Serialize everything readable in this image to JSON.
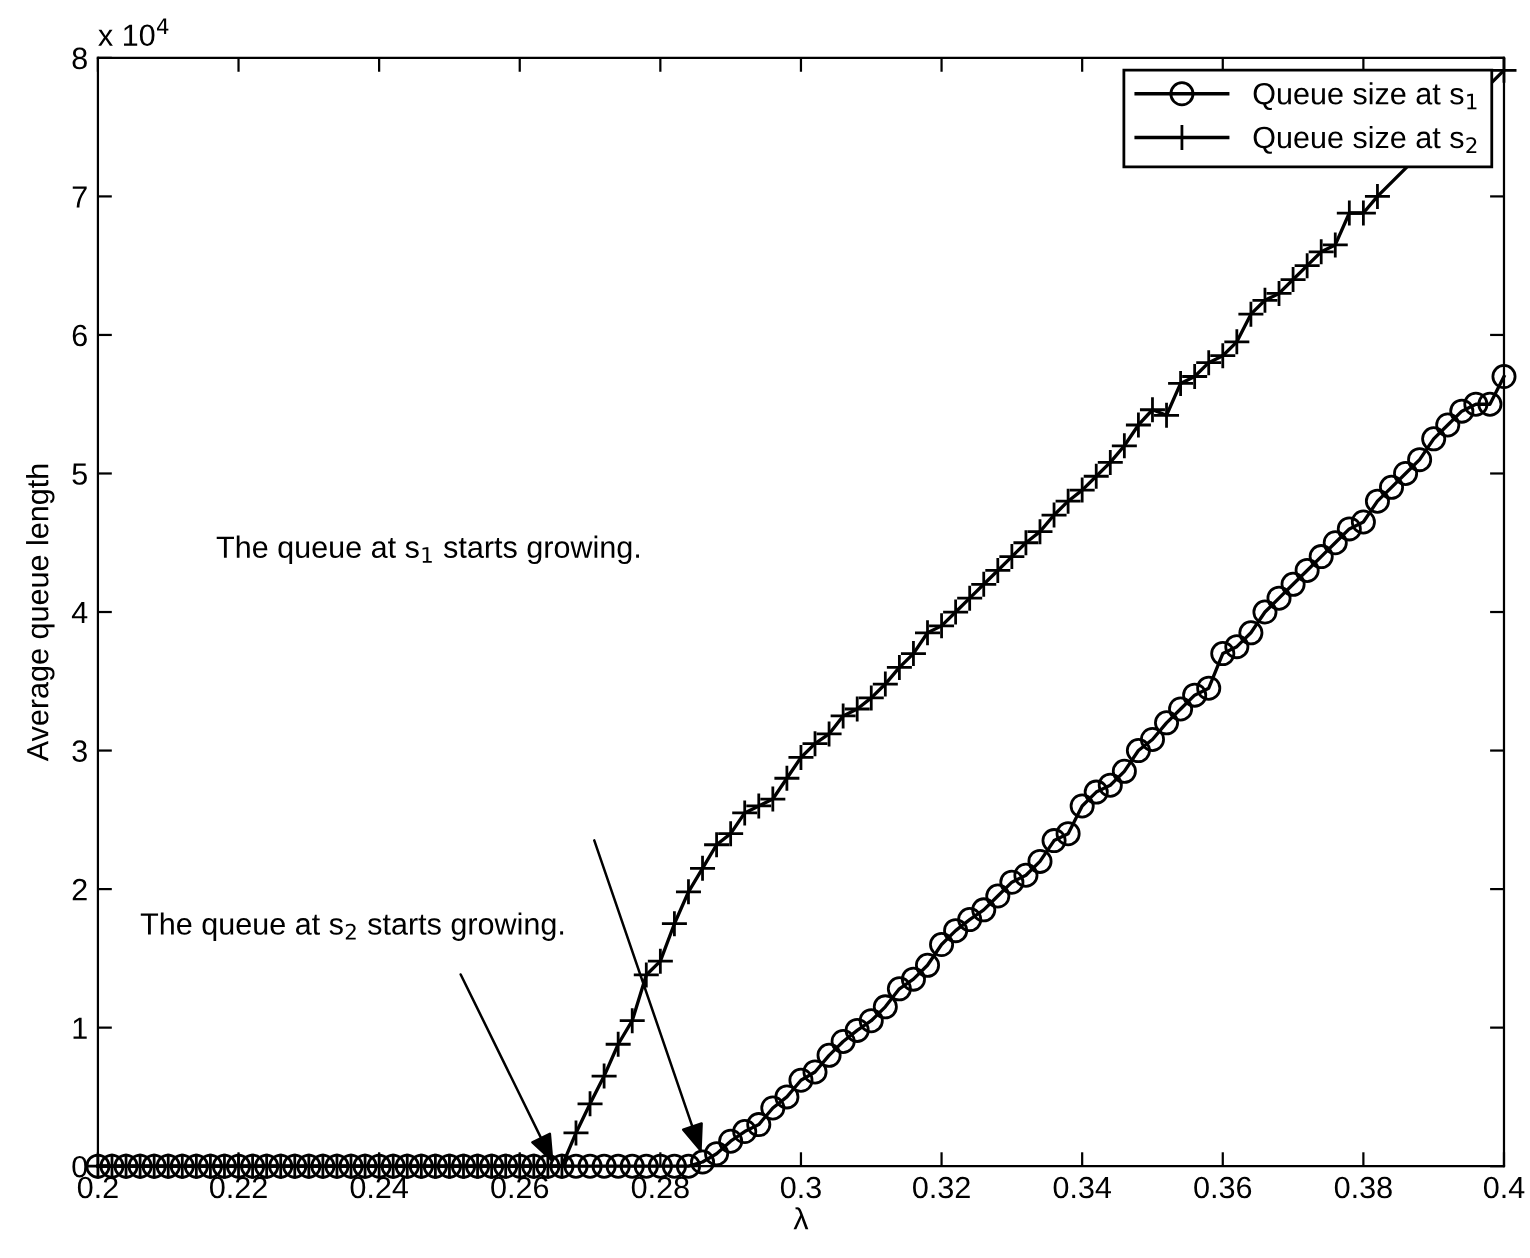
{
  "chart_data": {
    "type": "line",
    "xlabel": "λ",
    "ylabel": "Average queue length",
    "xlim": [
      0.2,
      0.4
    ],
    "xticks": [
      0.2,
      0.22,
      0.24,
      0.26,
      0.28,
      0.3,
      0.32,
      0.34,
      0.36,
      0.38,
      0.4
    ],
    "ylim": [
      0,
      8
    ],
    "yticks": [
      0,
      1,
      2,
      3,
      4,
      5,
      6,
      7,
      8
    ],
    "grid": false,
    "legend": "top right",
    "line_style": "solid",
    "annotations": [
      "x 10$^{4}$",
      "The queue at s$_{1}$ starts growing.",
      {
        "text": "The queue at s$_{2}$ starts growing.",
        "x": 0.265,
        "y": 0
      }
    ],
    "series": [
      {
        "name": "Queue size at s$_{1}$",
        "color": "#000000",
        "marker": "circle",
        "x": [
          0.2,
          0.202,
          0.204,
          0.206,
          0.208,
          0.21,
          0.212,
          0.214,
          0.216,
          0.218,
          0.22,
          0.222,
          0.224,
          0.226,
          0.228,
          0.23,
          0.232,
          0.234,
          0.236,
          0.238,
          0.24,
          0.242,
          0.244,
          0.246,
          0.248,
          0.25,
          0.252,
          0.254,
          0.256,
          0.258,
          0.26,
          0.262,
          0.264,
          0.266,
          0.268,
          0.27,
          0.272,
          0.274,
          0.276,
          0.278,
          0.28,
          0.282,
          0.284,
          0.286,
          0.288,
          0.29,
          0.292,
          0.294,
          0.296,
          0.298,
          0.3,
          0.302,
          0.304,
          0.306,
          0.308,
          0.31,
          0.312,
          0.314,
          0.316,
          0.318,
          0.32,
          0.322,
          0.324,
          0.326,
          0.328,
          0.33,
          0.332,
          0.334,
          0.336,
          0.338,
          0.34,
          0.342,
          0.344,
          0.346,
          0.348,
          0.35,
          0.352,
          0.354,
          0.356,
          0.358,
          0.36,
          0.362,
          0.364,
          0.366,
          0.368,
          0.37,
          0.372,
          0.374,
          0.376,
          0.378,
          0.38,
          0.382,
          0.384,
          0.386,
          0.388,
          0.39,
          0.392,
          0.394,
          0.396,
          0.398,
          0.4
        ],
        "values": [
          0,
          0,
          0,
          0,
          0,
          0,
          0,
          0,
          0,
          0,
          0,
          0,
          0,
          0,
          0,
          0,
          0,
          0,
          0,
          0,
          0,
          0,
          0,
          0,
          0,
          0,
          0,
          0,
          0,
          0,
          0,
          0,
          0,
          0,
          0,
          0,
          0,
          0,
          0,
          0,
          0,
          0,
          0,
          0.03,
          0.09,
          0.18,
          0.25,
          0.3,
          0.42,
          0.5,
          0.62,
          0.68,
          0.8,
          0.9,
          0.98,
          1.05,
          1.15,
          1.28,
          1.35,
          1.45,
          1.6,
          1.7,
          1.78,
          1.85,
          1.95,
          2.05,
          2.1,
          2.2,
          2.35,
          2.4,
          2.6,
          2.7,
          2.75,
          2.85,
          3.0,
          3.08,
          3.2,
          3.3,
          3.4,
          3.45,
          3.7,
          3.75,
          3.85,
          4.0,
          4.1,
          4.2,
          4.3,
          4.4,
          4.5,
          4.6,
          4.65,
          4.8,
          4.9,
          5.0,
          5.1,
          5.25,
          5.35,
          5.45,
          5.5,
          5.5,
          5.7
        ]
      },
      {
        "name": "Queue size at s$_{2}$",
        "color": "#000000",
        "marker": "cross",
        "x": [
          0.2,
          0.202,
          0.204,
          0.206,
          0.208,
          0.21,
          0.212,
          0.214,
          0.216,
          0.218,
          0.22,
          0.222,
          0.224,
          0.226,
          0.228,
          0.23,
          0.232,
          0.234,
          0.236,
          0.238,
          0.24,
          0.242,
          0.244,
          0.246,
          0.248,
          0.25,
          0.252,
          0.254,
          0.256,
          0.258,
          0.26,
          0.262,
          0.264,
          0.266,
          0.268,
          0.27,
          0.272,
          0.274,
          0.276,
          0.278,
          0.28,
          0.282,
          0.284,
          0.286,
          0.288,
          0.29,
          0.292,
          0.294,
          0.296,
          0.298,
          0.3,
          0.302,
          0.304,
          0.306,
          0.308,
          0.31,
          0.312,
          0.314,
          0.316,
          0.318,
          0.32,
          0.322,
          0.324,
          0.326,
          0.328,
          0.33,
          0.332,
          0.334,
          0.336,
          0.338,
          0.34,
          0.342,
          0.344,
          0.346,
          0.348,
          0.35,
          0.352,
          0.354,
          0.356,
          0.358,
          0.36,
          0.362,
          0.364,
          0.366,
          0.368,
          0.37,
          0.372,
          0.374,
          0.376,
          0.378,
          0.38,
          0.382,
          0.4
        ],
        "values": [
          0,
          0,
          0,
          0,
          0,
          0,
          0,
          0,
          0,
          0,
          0,
          0,
          0,
          0,
          0,
          0,
          0,
          0,
          0,
          0,
          0,
          0,
          0,
          0,
          0,
          0,
          0,
          0,
          0,
          0,
          0,
          0,
          0,
          0,
          0.24,
          0.45,
          0.65,
          0.88,
          1.05,
          1.38,
          1.48,
          1.75,
          1.98,
          2.15,
          2.32,
          2.4,
          2.55,
          2.6,
          2.65,
          2.8,
          2.95,
          3.05,
          3.12,
          3.25,
          3.3,
          3.38,
          3.48,
          3.6,
          3.7,
          3.85,
          3.9,
          4.0,
          4.1,
          4.2,
          4.3,
          4.4,
          4.5,
          4.58,
          4.7,
          4.8,
          4.88,
          4.98,
          5.08,
          5.2,
          5.35,
          5.46,
          5.42,
          5.65,
          5.7,
          5.8,
          5.85,
          5.95,
          6.15,
          6.25,
          6.3,
          6.4,
          6.5,
          6.6,
          6.65,
          6.88,
          6.88,
          7.0,
          7.91
        ]
      }
    ]
  }
}
